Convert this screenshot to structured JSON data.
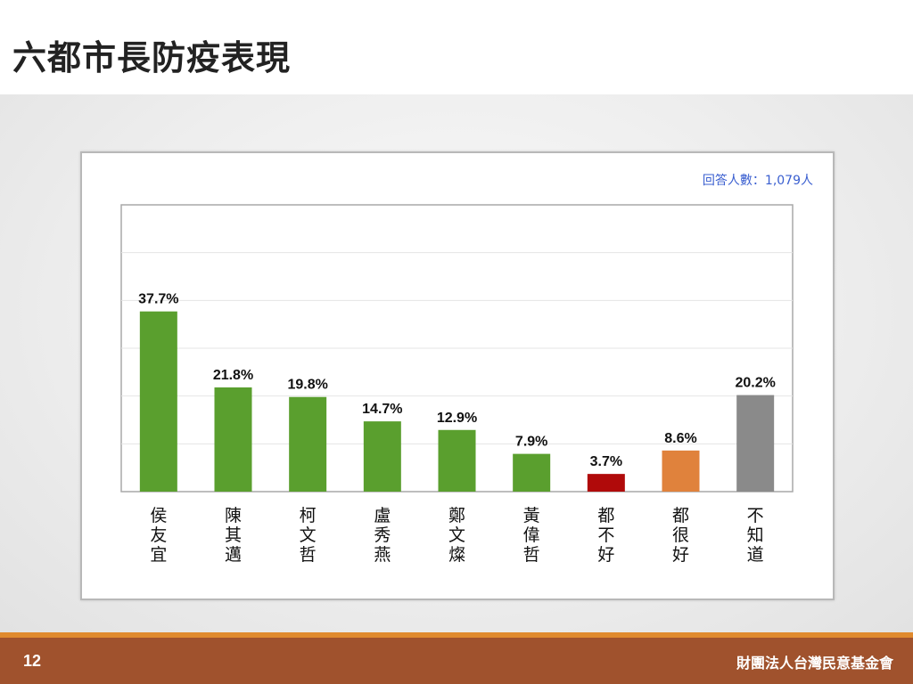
{
  "slide": {
    "title": "六都市長防疫表現",
    "page_number": "12",
    "organization": "財團法人台灣民意基金會"
  },
  "chart": {
    "respondents_note": "回答人數：1,079人"
  },
  "colors": {
    "green": "#5a9f2e",
    "red": "#b00a0a",
    "orange": "#e0823c",
    "gray": "#8a8a8a",
    "footer": "#a0522d",
    "footer_stripe": "#e08a2e",
    "note_blue": "#3a5fd0"
  },
  "chart_data": {
    "type": "bar",
    "title": "",
    "xlabel": "",
    "ylabel": "",
    "ylim": [
      0,
      60
    ],
    "grid": true,
    "value_suffix": "%",
    "categories": [
      "侯友宜",
      "陳其邁",
      "柯文哲",
      "盧秀燕",
      "鄭文燦",
      "黃偉哲",
      "都不好",
      "都很好",
      "不知道"
    ],
    "values": [
      37.7,
      21.8,
      19.8,
      14.7,
      12.9,
      7.9,
      3.7,
      8.6,
      20.2
    ],
    "value_labels": [
      "37.7%",
      "21.8%",
      "19.8%",
      "14.7%",
      "12.9%",
      "7.9%",
      "3.7%",
      "8.6%",
      "20.2%"
    ],
    "bar_colors": [
      "#5a9f2e",
      "#5a9f2e",
      "#5a9f2e",
      "#5a9f2e",
      "#5a9f2e",
      "#5a9f2e",
      "#b00a0a",
      "#e0823c",
      "#8a8a8a"
    ]
  }
}
